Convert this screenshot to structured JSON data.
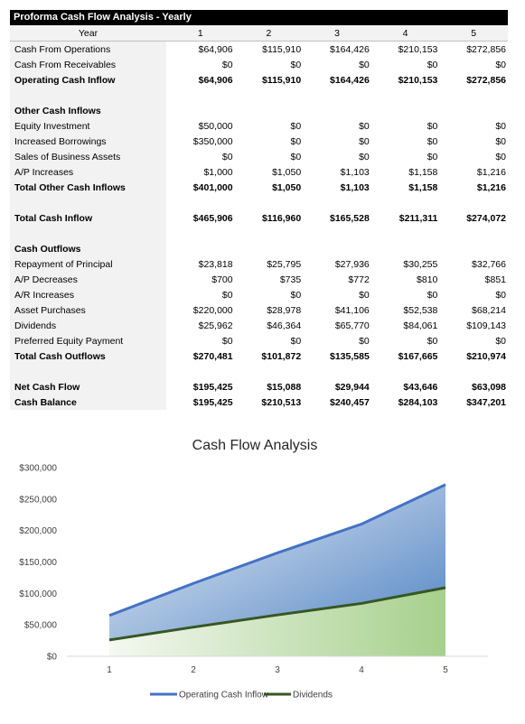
{
  "table": {
    "title": "Proforma Cash Flow Analysis - Yearly",
    "year_label": "Year",
    "years": [
      "1",
      "2",
      "3",
      "4",
      "5"
    ],
    "rows": [
      {
        "label": "Cash From Operations",
        "values": [
          "$64,906",
          "$115,910",
          "$164,426",
          "$210,153",
          "$272,856"
        ],
        "bold": false
      },
      {
        "label": "Cash From Receivables",
        "values": [
          "$0",
          "$0",
          "$0",
          "$0",
          "$0"
        ],
        "bold": false
      },
      {
        "label": "Operating Cash Inflow",
        "values": [
          "$64,906",
          "$115,910",
          "$164,426",
          "$210,153",
          "$272,856"
        ],
        "bold": true
      },
      {
        "label": "",
        "values": [
          "",
          "",
          "",
          "",
          ""
        ],
        "bold": false
      },
      {
        "label": "Other Cash Inflows",
        "values": [
          "",
          "",
          "",
          "",
          ""
        ],
        "bold": true
      },
      {
        "label": "Equity Investment",
        "values": [
          "$50,000",
          "$0",
          "$0",
          "$0",
          "$0"
        ],
        "bold": false
      },
      {
        "label": "Increased Borrowings",
        "values": [
          "$350,000",
          "$0",
          "$0",
          "$0",
          "$0"
        ],
        "bold": false
      },
      {
        "label": "Sales of Business Assets",
        "values": [
          "$0",
          "$0",
          "$0",
          "$0",
          "$0"
        ],
        "bold": false
      },
      {
        "label": "A/P Increases",
        "values": [
          "$1,000",
          "$1,050",
          "$1,103",
          "$1,158",
          "$1,216"
        ],
        "bold": false
      },
      {
        "label": "Total Other Cash Inflows",
        "values": [
          "$401,000",
          "$1,050",
          "$1,103",
          "$1,158",
          "$1,216"
        ],
        "bold": true
      },
      {
        "label": "",
        "values": [
          "",
          "",
          "",
          "",
          ""
        ],
        "bold": false
      },
      {
        "label": "Total Cash Inflow",
        "values": [
          "$465,906",
          "$116,960",
          "$165,528",
          "$211,311",
          "$274,072"
        ],
        "bold": true
      },
      {
        "label": "",
        "values": [
          "",
          "",
          "",
          "",
          ""
        ],
        "bold": false
      },
      {
        "label": "Cash Outflows",
        "values": [
          "",
          "",
          "",
          "",
          ""
        ],
        "bold": true
      },
      {
        "label": "Repayment of Principal",
        "values": [
          "$23,818",
          "$25,795",
          "$27,936",
          "$30,255",
          "$32,766"
        ],
        "bold": false
      },
      {
        "label": "A/P Decreases",
        "values": [
          "$700",
          "$735",
          "$772",
          "$810",
          "$851"
        ],
        "bold": false
      },
      {
        "label": "A/R Increases",
        "values": [
          "$0",
          "$0",
          "$0",
          "$0",
          "$0"
        ],
        "bold": false
      },
      {
        "label": "Asset Purchases",
        "values": [
          "$220,000",
          "$28,978",
          "$41,106",
          "$52,538",
          "$68,214"
        ],
        "bold": false
      },
      {
        "label": "Dividends",
        "values": [
          "$25,962",
          "$46,364",
          "$65,770",
          "$84,061",
          "$109,143"
        ],
        "bold": false
      },
      {
        "label": "Preferred Equity Payment",
        "values": [
          "$0",
          "$0",
          "$0",
          "$0",
          "$0"
        ],
        "bold": false
      },
      {
        "label": "Total Cash Outflows",
        "values": [
          "$270,481",
          "$101,872",
          "$135,585",
          "$167,665",
          "$210,974"
        ],
        "bold": true
      },
      {
        "label": "",
        "values": [
          "",
          "",
          "",
          "",
          ""
        ],
        "bold": false
      },
      {
        "label": "Net Cash Flow",
        "values": [
          "$195,425",
          "$15,088",
          "$29,944",
          "$43,646",
          "$63,098"
        ],
        "bold": true
      },
      {
        "label": "Cash Balance",
        "values": [
          "$195,425",
          "$210,513",
          "$240,457",
          "$284,103",
          "$347,201"
        ],
        "bold": true
      }
    ]
  },
  "chart_data": {
    "type": "area",
    "title": "Cash Flow Analysis",
    "categories": [
      "1",
      "2",
      "3",
      "4",
      "5"
    ],
    "series": [
      {
        "name": "Operating Cash Inflow",
        "values": [
          64906,
          115910,
          164426,
          210153,
          272856
        ],
        "color": "#4472c4"
      },
      {
        "name": "Dividends",
        "values": [
          25962,
          46364,
          65770,
          84061,
          109143
        ],
        "color": "#375623"
      }
    ],
    "y_ticks": [
      "$0",
      "$50,000",
      "$100,000",
      "$150,000",
      "$200,000",
      "$250,000",
      "$300,000"
    ],
    "ylim": [
      0,
      300000
    ],
    "grid": false,
    "legend_position": "bottom"
  }
}
